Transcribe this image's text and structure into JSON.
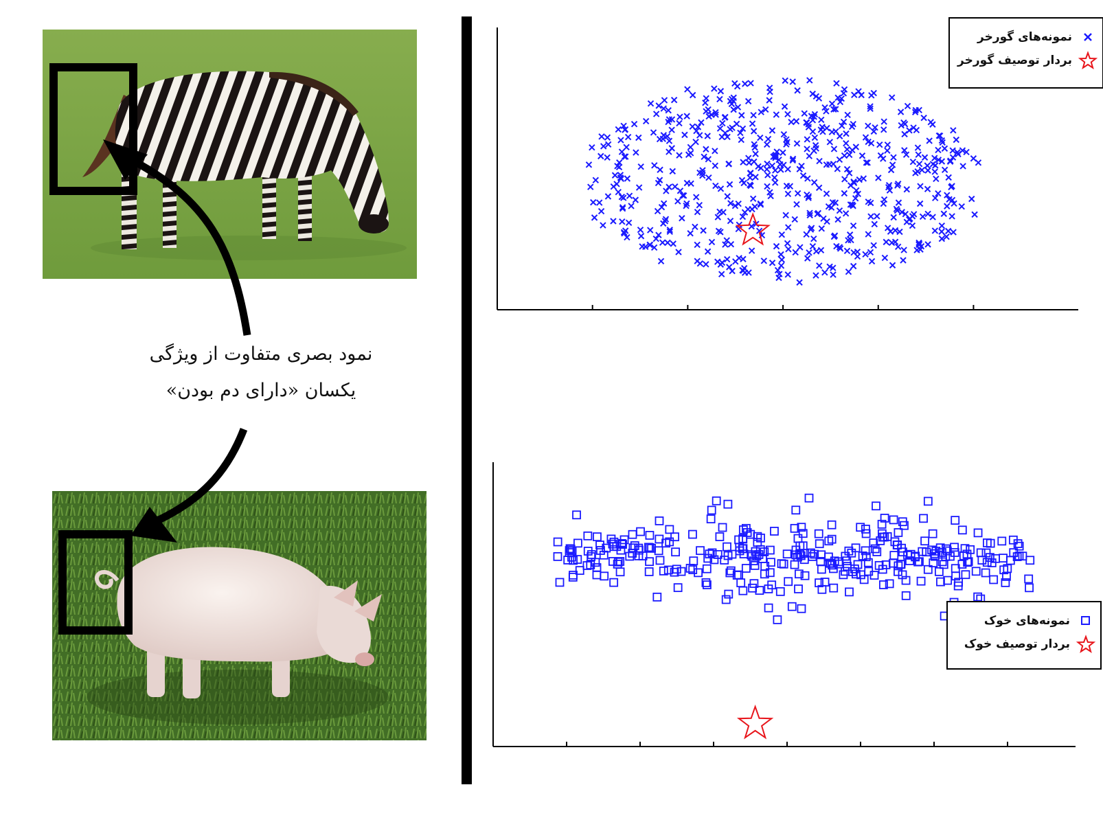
{
  "caption": {
    "line1": "نمود بصری متفاوت  از ویژگی",
    "line2": "یکسان «دارای دم بودن»"
  },
  "colors": {
    "samples": "#1a1aff",
    "description_vector": "#e8151b",
    "grass": "#7ba446",
    "pig_grass": "#3e6a22"
  },
  "chart_data": [
    {
      "type": "scatter",
      "title": "",
      "xlabel": "",
      "ylabel": "",
      "legend_position": "top-right",
      "x_ticks": 5,
      "series": [
        {
          "name": "نمونه‌های گورخر",
          "marker": "x",
          "color": "#1a1aff",
          "count": 620
        },
        {
          "name": "بردار توصیف گورخر",
          "marker": "star",
          "color": "#e8151b",
          "x": 0.44,
          "y": 0.28
        }
      ]
    },
    {
      "type": "scatter",
      "title": "",
      "xlabel": "",
      "ylabel": "",
      "legend_position": "right",
      "x_ticks": 7,
      "series": [
        {
          "name": "نمونه‌های خوک",
          "marker": "square",
          "color": "#1a1aff",
          "count": 340
        },
        {
          "name": "بردار توصیف خوک",
          "marker": "star",
          "color": "#e8151b",
          "x": 0.45,
          "y": 0.08
        }
      ]
    }
  ]
}
